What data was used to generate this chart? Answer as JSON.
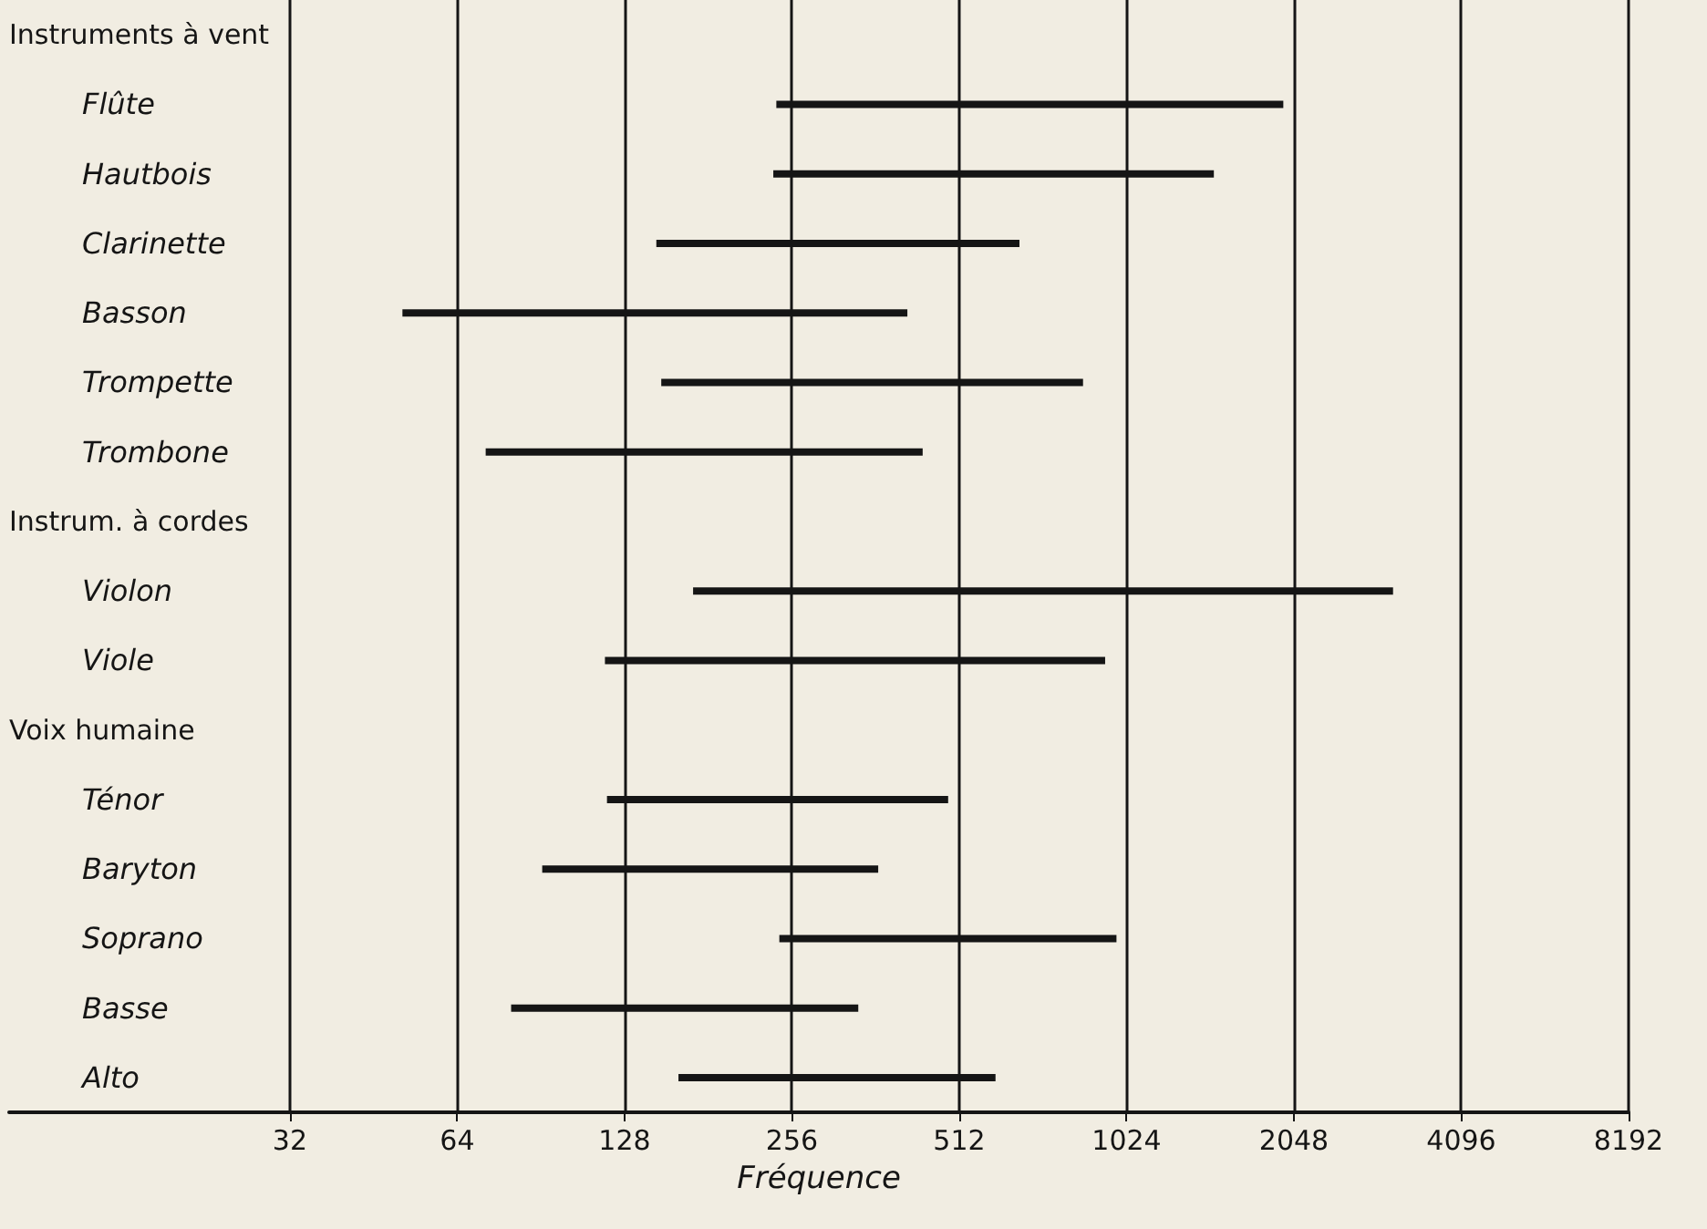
{
  "chart_data": {
    "type": "bar",
    "orientation": "horizontal",
    "log": "x",
    "xlabel": "Fréquence",
    "color": "#151515",
    "categories": [
      "Instruments à vent",
      "Flûte",
      "Hautbois",
      "Clarinette",
      "Basson",
      "Trompette",
      "Trombone",
      "Instrum. à cordes",
      "Violon",
      "Viole",
      "Voix humaine",
      "Ténor",
      "Baryton",
      "Soprano",
      "Basse",
      "Alto"
    ],
    "base": [
      null,
      240,
      237,
      146,
      51,
      149,
      72,
      null,
      170,
      118,
      null,
      119,
      91,
      243,
      80,
      160
    ],
    "values": [
      null,
      1720,
      1233,
      511,
      362,
      706,
      368,
      null,
      2918,
      819,
      null,
      370,
      275,
      739,
      257,
      435
    ],
    "xlim": [
      10,
      8192
    ],
    "xticks": [
      32,
      64,
      128,
      256,
      512,
      1024,
      2048,
      4096,
      8192
    ],
    "grid": "x"
  }
}
